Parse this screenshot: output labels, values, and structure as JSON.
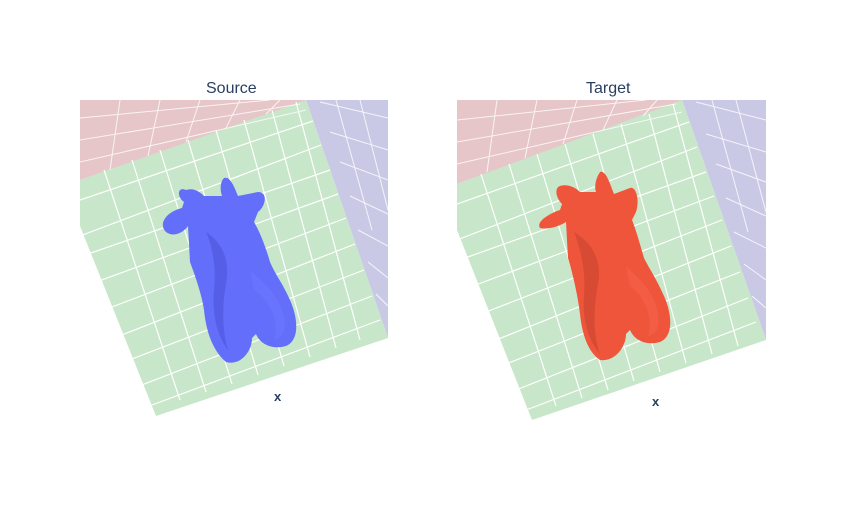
{
  "chart_data": [
    {
      "type": "mesh3d",
      "title": "Source",
      "xlabel": "x",
      "mesh_color": "#636efa",
      "plane_colors": {
        "floor": "#c8e6c9",
        "back_wall": "#e6c6c8",
        "side_wall": "#c9c9e6"
      },
      "grid": true
    },
    {
      "type": "mesh3d",
      "title": "Target",
      "xlabel": "x",
      "mesh_color": "#ef553b",
      "plane_colors": {
        "floor": "#c8e6c9",
        "back_wall": "#e6c6c8",
        "side_wall": "#c9c9e6"
      },
      "grid": true
    }
  ]
}
